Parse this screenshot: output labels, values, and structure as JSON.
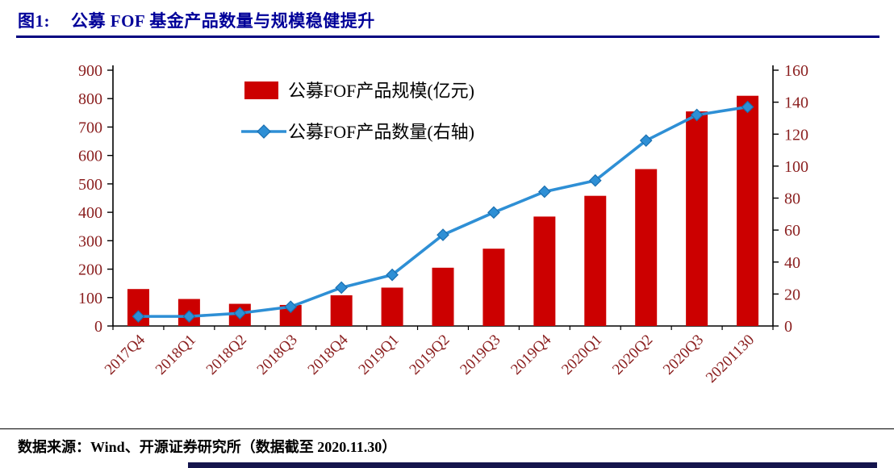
{
  "header": {
    "figure_label": "图1:",
    "title": "公募 FOF 基金产品数量与规模稳健提升"
  },
  "footer": {
    "source": "数据来源：Wind、开源证券研究所（数据截至 2020.11.30）"
  },
  "colors": {
    "title": "#000099",
    "divider": "#000080",
    "bar": "#CC0000",
    "line": "#2E8FD5",
    "marker_edge": "#1A6FB0",
    "axis_label": "#8B2020",
    "axis_line": "#000000",
    "legend_text": "#000000",
    "bottom_bar": "#15154D"
  },
  "chart_data": {
    "type": "combo",
    "title": "公募 FOF 基金产品数量与规模稳健提升",
    "categories": [
      "2017Q4",
      "2018Q1",
      "2018Q2",
      "2018Q3",
      "2018Q4",
      "2019Q1",
      "2019Q2",
      "2019Q3",
      "2019Q4",
      "2020Q1",
      "2020Q2",
      "2020Q3",
      "20201130"
    ],
    "series": [
      {
        "name": "公募FOF产品规模",
        "legend_label": "公募FOF产品规模(亿元)",
        "type": "bar",
        "axis": "left",
        "values": [
          130,
          95,
          78,
          74,
          108,
          135,
          205,
          272,
          385,
          458,
          552,
          755,
          810
        ]
      },
      {
        "name": "公募FOF产品数量",
        "legend_label": "公募FOF产品数量(右轴)",
        "type": "line",
        "axis": "right",
        "values": [
          6,
          6,
          8,
          12,
          24,
          32,
          57,
          71,
          84,
          91,
          116,
          132,
          137
        ]
      }
    ],
    "left_axis": {
      "min": 0,
      "max": 900,
      "step": 100,
      "label": ""
    },
    "right_axis": {
      "min": 0,
      "max": 160,
      "step": 20,
      "label": ""
    },
    "grid": false,
    "legend_position": "top-inside",
    "x_label_rotation": -45
  }
}
